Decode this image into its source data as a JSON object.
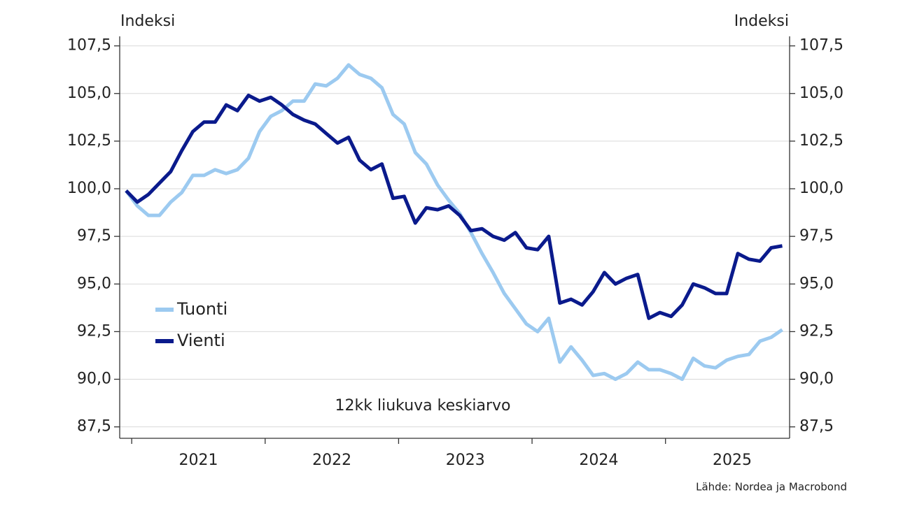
{
  "chart_data": {
    "type": "line",
    "axis_label_left": "Indeksi",
    "axis_label_right": "Indeksi",
    "annotation": "12kk liukuva keskiarvo",
    "source": "Lähde: Nordea ja Macrobond",
    "x": [
      2020.958,
      2021.042,
      2021.125,
      2021.208,
      2021.292,
      2021.375,
      2021.458,
      2021.542,
      2021.625,
      2021.708,
      2021.792,
      2021.875,
      2021.958,
      2022.042,
      2022.125,
      2022.208,
      2022.292,
      2022.375,
      2022.458,
      2022.542,
      2022.625,
      2022.708,
      2022.792,
      2022.875,
      2022.958,
      2023.042,
      2023.125,
      2023.208,
      2023.292,
      2023.375,
      2023.458,
      2023.542,
      2023.625,
      2023.708,
      2023.792,
      2023.875,
      2023.958,
      2024.042,
      2024.125,
      2024.208,
      2024.292,
      2024.375,
      2024.458,
      2024.542,
      2024.625,
      2024.708,
      2024.792,
      2024.875,
      2024.958,
      2025.042,
      2025.125,
      2025.208,
      2025.292,
      2025.375,
      2025.458,
      2025.542,
      2025.625,
      2025.708,
      2025.792,
      2025.875
    ],
    "series": [
      {
        "name": "Tuonti",
        "color": "#9ccaf0",
        "values": [
          99.9,
          99.1,
          98.6,
          98.6,
          99.3,
          99.8,
          100.7,
          100.7,
          101.0,
          100.8,
          101.0,
          101.6,
          103.0,
          103.8,
          104.1,
          104.6,
          104.6,
          105.5,
          105.4,
          105.8,
          106.5,
          106.0,
          105.8,
          105.3,
          103.9,
          103.4,
          101.9,
          101.3,
          100.2,
          99.4,
          98.7,
          97.7,
          96.6,
          95.6,
          94.5,
          93.7,
          92.9,
          92.5,
          93.2,
          90.9,
          91.7,
          91.0,
          90.2,
          90.3,
          90.0,
          90.3,
          90.9,
          90.5,
          90.5,
          90.3,
          90.0,
          91.1,
          90.7,
          90.6,
          91.0,
          91.2,
          91.3,
          92.0,
          92.2,
          92.6
        ]
      },
      {
        "name": "Vienti",
        "color": "#0a1a8c",
        "values": [
          99.9,
          99.3,
          99.7,
          100.3,
          100.9,
          102.0,
          103.0,
          103.5,
          103.5,
          104.4,
          104.1,
          104.9,
          104.6,
          104.8,
          104.4,
          103.9,
          103.6,
          103.4,
          102.9,
          102.4,
          102.7,
          101.5,
          101.0,
          101.3,
          99.5,
          99.6,
          98.2,
          99.0,
          98.9,
          99.1,
          98.6,
          97.8,
          97.9,
          97.5,
          97.3,
          97.7,
          96.9,
          96.8,
          97.5,
          94.0,
          94.2,
          93.9,
          94.6,
          95.6,
          95.0,
          95.3,
          95.5,
          93.2,
          93.5,
          93.3,
          93.9,
          95.0,
          94.8,
          94.5,
          94.5,
          96.6,
          96.3,
          96.2,
          96.9,
          97.0
        ]
      }
    ],
    "xlim": [
      2020.91,
      2025.93
    ],
    "xticks": [
      {
        "value": 2021.5,
        "label": "2021"
      },
      {
        "value": 2022.5,
        "label": "2022"
      },
      {
        "value": 2023.5,
        "label": "2023"
      },
      {
        "value": 2024.5,
        "label": "2024"
      },
      {
        "value": 2025.5,
        "label": "2025"
      }
    ],
    "xtick_marks": [
      2021,
      2022,
      2023,
      2024,
      2025
    ],
    "ylim": [
      86.9,
      108.0
    ],
    "yticks": [
      {
        "value": 87.5,
        "label": "87,5"
      },
      {
        "value": 90,
        "label": "90,0"
      },
      {
        "value": 92.5,
        "label": "92,5"
      },
      {
        "value": 95,
        "label": "95,0"
      },
      {
        "value": 97.5,
        "label": "97,5"
      },
      {
        "value": 100,
        "label": "100,0"
      },
      {
        "value": 102.5,
        "label": "102,5"
      },
      {
        "value": 105,
        "label": "105,0"
      },
      {
        "value": 107.5,
        "label": "107,5"
      }
    ],
    "y2lim": [
      86.9,
      108.0
    ],
    "y2ticks": [
      {
        "value": 87.5,
        "label": "87,5"
      },
      {
        "value": 90,
        "label": "90,0"
      },
      {
        "value": 92.5,
        "label": "92,5"
      },
      {
        "value": 95,
        "label": "95,0"
      },
      {
        "value": 97.5,
        "label": "97,5"
      },
      {
        "value": 100,
        "label": "100,0"
      },
      {
        "value": 102.5,
        "label": "102,5"
      },
      {
        "value": 105,
        "label": "105,0"
      },
      {
        "value": 107.5,
        "label": "107,5"
      }
    ],
    "grid": true
  }
}
